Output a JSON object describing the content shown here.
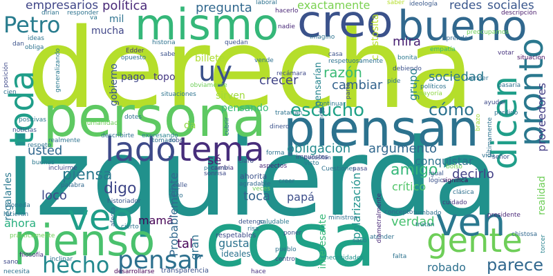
{
  "words": [
    {
      "text": "derecha",
      "color": "#b5de2b"
    },
    {
      "text": "izquierda",
      "color": "#21918c"
    },
    {
      "text": "cosa",
      "color": "#1fa187"
    },
    {
      "text": "persona",
      "color": "#5ec962"
    },
    {
      "text": "piensan",
      "color": "#2c728e"
    },
    {
      "text": "mismo",
      "color": "#35b779"
    },
    {
      "text": "creo",
      "color": "#3b528b"
    },
    {
      "text": "bueno",
      "color": "#31688e"
    },
    {
      "text": "pienso",
      "color": "#4ac16d"
    },
    {
      "text": "gente",
      "color": "#6ece58"
    },
    {
      "text": "ven",
      "color": "#2a788e"
    },
    {
      "text": "veo",
      "color": "#1f9e89"
    },
    {
      "text": "lado",
      "color": "#3e4a89"
    },
    {
      "text": "tema",
      "color": "#472d7b"
    },
    {
      "text": "uy",
      "color": "#3b528b"
    },
    {
      "text": "hecho",
      "color": "#23898e"
    },
    {
      "text": "dicen",
      "color": "#1f9e89"
    },
    {
      "text": "pronto",
      "color": "#2a788e"
    },
    {
      "text": "toda",
      "color": "#1f9e89"
    },
    {
      "text": "Petro",
      "color": "#287c8e"
    },
    {
      "text": "pensar",
      "color": "#2d708e"
    },
    {
      "text": "escucho",
      "color": "#1fa187"
    },
    {
      "text": "cómo",
      "color": "#2c728e"
    },
    {
      "text": "parece",
      "color": "#31688e"
    },
    {
      "text": "política",
      "color": "#482878"
    },
    {
      "text": "empresarios",
      "color": "#404688"
    },
    {
      "text": "pregunta",
      "color": "#31688e"
    },
    {
      "text": "exactamente",
      "color": "#7ad151"
    },
    {
      "text": "redes",
      "color": "#39568c"
    },
    {
      "text": "sociales",
      "color": "#39568c"
    },
    {
      "text": "mira",
      "color": "#482173"
    },
    {
      "text": "razón",
      "color": "#3aba76"
    },
    {
      "text": "crecer",
      "color": "#414487"
    },
    {
      "text": "cambiar",
      "color": "#33638d"
    },
    {
      "text": "sociedad",
      "color": "#2a788e"
    },
    {
      "text": "grupo",
      "color": "#26828e"
    },
    {
      "text": "obligación",
      "color": "#23898e"
    },
    {
      "text": "argumento",
      "color": "#31688e"
    },
    {
      "text": "usted",
      "color": "#31688e"
    },
    {
      "text": "piensa",
      "color": "#2a788e"
    },
    {
      "text": "amigo",
      "color": "#35b779"
    },
    {
      "text": "decirlo",
      "color": "#424086"
    },
    {
      "text": "digo",
      "color": "#3f4788"
    },
    {
      "text": "loco",
      "color": "#3e4989"
    },
    {
      "text": "sé",
      "color": "#481f70"
    },
    {
      "text": "toca",
      "color": "#33638d"
    },
    {
      "text": "papá",
      "color": "#3d4e8a"
    },
    {
      "text": "crítico",
      "color": "#52c569"
    },
    {
      "text": "verdad",
      "color": "#46c06f"
    },
    {
      "text": "robado",
      "color": "#2d708e"
    },
    {
      "text": "mamá",
      "color": "#440154"
    },
    {
      "text": "ahora",
      "color": "#29af7f"
    },
    {
      "text": "gusta",
      "color": "#2c728e"
    },
    {
      "text": "tal",
      "color": "#440154"
    },
    {
      "text": "gran",
      "color": "#2d708e"
    },
    {
      "text": "Probablemente",
      "color": "#31688e"
    },
    {
      "text": "polarización",
      "color": "#20928c"
    },
    {
      "text": "interesante",
      "color": "#37b878"
    },
    {
      "text": "conquistar",
      "color": "#2c728e"
    },
    {
      "text": "proveedores",
      "color": "#433e85"
    },
    {
      "text": "realidad",
      "color": "#6ece58"
    },
    {
      "text": "pensando",
      "color": "#3aba76"
    },
    {
      "text": "billete",
      "color": "#addc30"
    },
    {
      "text": "pago",
      "color": "#3f4788"
    },
    {
      "text": "topo",
      "color": "#453882"
    },
    {
      "text": "sirven",
      "color": "#9fda3a"
    },
    {
      "text": "gobierno",
      "color": "#39568c"
    },
    {
      "text": "mil",
      "color": "#2c728e"
    },
    {
      "text": "mucha",
      "color": "#404688"
    },
    {
      "text": "da",
      "color": "#8fd744"
    },
    {
      "text": "pensarían",
      "color": "#25848e"
    },
    {
      "text": "chistosita",
      "color": "#b8de29"
    },
    {
      "text": "regalarles",
      "color": "#2a788e"
    },
    {
      "text": "ideología",
      "color": "#38588c"
    },
    {
      "text": "saber",
      "color": "#b5de2b"
    },
    {
      "text": "laboral",
      "color": "#2c728e"
    },
    {
      "text": "hacerlo",
      "color": "#482475"
    },
    {
      "text": "nadie",
      "color": "#482878"
    },
    {
      "text": "descripción",
      "color": "#481a6c"
    },
    {
      "text": "preocupamos",
      "color": "#6ece58"
    },
    {
      "text": "aprender",
      "color": "#31688e"
    },
    {
      "text": "bonita",
      "color": "#2a788e"
    },
    {
      "text": "votar",
      "color": "#46337e"
    },
    {
      "text": "situación",
      "color": "#471063"
    },
    {
      "text": "empatía",
      "color": "#35b779"
    },
    {
      "text": "debiendo",
      "color": "#3b528b"
    },
    {
      "text": "políticos",
      "color": "#2c728e"
    },
    {
      "text": "mayoría",
      "color": "#8fd744"
    },
    {
      "text": "ayudar",
      "color": "#3e4a89"
    },
    {
      "text": "pasaría",
      "color": "#2d708e"
    },
    {
      "text": "vender",
      "color": "#2d708e"
    },
    {
      "text": "últimamente",
      "color": "#2c728e"
    },
    {
      "text": "brazo",
      "color": "#9fda3a"
    },
    {
      "text": "perdido",
      "color": "#2c728e"
    },
    {
      "text": "señor",
      "color": "#3b528b"
    },
    {
      "text": "vida",
      "color": "#2d708e"
    },
    {
      "text": "bolso",
      "color": "#6ece58"
    },
    {
      "text": "igual",
      "color": "#39568c"
    },
    {
      "text": "significa",
      "color": "#440154"
    },
    {
      "text": "lógica",
      "color": "#3b528b"
    },
    {
      "text": "clásica",
      "color": "#2d708e"
    },
    {
      "text": "cuidado",
      "color": "#46337e"
    },
    {
      "text": "presidente",
      "color": "#482878"
    },
    {
      "text": "chistosa",
      "color": "#31688e"
    },
    {
      "text": "torcer",
      "color": "#26828e"
    },
    {
      "text": "atender",
      "color": "#2d708e"
    },
    {
      "text": "falta",
      "color": "#2c728e"
    },
    {
      "text": "tratan",
      "color": "#2a788e"
    },
    {
      "text": "necesidades",
      "color": "#21918c"
    },
    {
      "text": "tumbado",
      "color": "#2d708e"
    },
    {
      "text": "concepto",
      "color": "#31688e"
    },
    {
      "text": "diametralmente",
      "color": "#482878"
    },
    {
      "text": "Cuestiones",
      "color": "#2d708e"
    },
    {
      "text": "pasa",
      "color": "#3e4a89"
    },
    {
      "text": "ministros",
      "color": "#2d708e"
    },
    {
      "text": "centro",
      "color": "#3e4989"
    },
    {
      "text": "pueblo",
      "color": "#2c728e"
    },
    {
      "text": "poner",
      "color": "#3b528b"
    },
    {
      "text": "sacó",
      "color": "#2a788e"
    },
    {
      "text": "hace",
      "color": "#46307e"
    },
    {
      "text": "ideales",
      "color": "#2c728e"
    },
    {
      "text": "respetables",
      "color": "#3e4a89"
    },
    {
      "text": "transparencia",
      "color": "#3b528b"
    },
    {
      "text": "desarrollarse",
      "color": "#440154"
    },
    {
      "text": "necesita",
      "color": "#2c728e"
    },
    {
      "text": "sano",
      "color": "#3e4989"
    },
    {
      "text": "filosofía",
      "color": "#46337e"
    },
    {
      "text": "prácticamente",
      "color": "#6ece58"
    },
    {
      "text": "moneda",
      "color": "#2c728e"
    },
    {
      "text": "hicieran",
      "color": "#2c728e"
    },
    {
      "text": "buenas",
      "color": "#2a788e"
    },
    {
      "text": "incluirme",
      "color": "#3e4989"
    },
    {
      "text": "palabra",
      "color": "#31688e"
    },
    {
      "text": "historiador",
      "color": "#39568c"
    },
    {
      "text": "afecta",
      "color": "#33638d"
    },
    {
      "text": "cierto",
      "color": "#2c728e"
    },
    {
      "text": "inclinar",
      "color": "#2c728e"
    },
    {
      "text": "detengo",
      "color": "#3b528b"
    },
    {
      "text": "saludable",
      "color": "#2a788e"
    },
    {
      "text": "risa",
      "color": "#2d708e"
    },
    {
      "text": "ahorita",
      "color": "#3b528b"
    },
    {
      "text": "agradable",
      "color": "#31688e"
    },
    {
      "text": "veces",
      "color": "#6ece58"
    },
    {
      "text": "creer",
      "color": "#2d708e"
    },
    {
      "text": "pensarán",
      "color": "#2c728e"
    },
    {
      "text": "sonrisa",
      "color": "#3e4a89"
    },
    {
      "text": "claro",
      "color": "#3b528b"
    },
    {
      "text": "aspectos",
      "color": "#482878"
    },
    {
      "text": "cambia",
      "color": "#46337e"
    },
    {
      "text": "calle",
      "color": "#3b528b"
    },
    {
      "text": "dar",
      "color": "#2c728e"
    },
    {
      "text": "saco",
      "color": "#2d708e"
    },
    {
      "text": "robo",
      "color": "#3b528b"
    },
    {
      "text": "describirte",
      "color": "#2d708e"
    },
    {
      "text": "expresando",
      "color": "#26828e"
    },
    {
      "text": "tomado",
      "color": "#2c728e"
    },
    {
      "text": "forma",
      "color": "#2c728e"
    },
    {
      "text": "impuestos",
      "color": "#3e4989"
    },
    {
      "text": "visto",
      "color": "#2a788e"
    },
    {
      "text": "necesitan",
      "color": "#3b528b"
    },
    {
      "text": "respeto",
      "color": "#2c728e"
    },
    {
      "text": "realmente",
      "color": "#2c728e"
    },
    {
      "text": "noticias",
      "color": "#3b528b"
    },
    {
      "text": "positivas",
      "color": "#2a788e"
    },
    {
      "text": "humanidad",
      "color": "#6ece58"
    },
    {
      "text": "dotes",
      "color": "#2d708e"
    },
    {
      "text": "dinero",
      "color": "#3b528b"
    },
    {
      "text": "cubrir",
      "color": "#2c728e"
    },
    {
      "text": "tratarían",
      "color": "#2c728e"
    },
    {
      "text": "manejo",
      "color": "#2d708e"
    },
    {
      "text": "parte",
      "color": "#3e4989"
    },
    {
      "text": "continuar",
      "color": "#2a788e"
    },
    {
      "text": "situaciones",
      "color": "#2c728e"
    },
    {
      "text": "obviamente",
      "color": "#6ece58"
    },
    {
      "text": "sabe",
      "color": "#3b528b"
    },
    {
      "text": "opuesto",
      "color": "#2d708e"
    },
    {
      "text": "Edder",
      "color": "#46337e"
    },
    {
      "text": "historia",
      "color": "#2c728e"
    },
    {
      "text": "generalizando",
      "color": "#2a788e"
    },
    {
      "text": "dan",
      "color": "#3b528b"
    },
    {
      "text": "obliga",
      "color": "#2c728e"
    },
    {
      "text": "ideas",
      "color": "#2c728e"
    },
    {
      "text": "posición",
      "color": "#3e4989"
    },
    {
      "text": "cien",
      "color": "#2d708e"
    },
    {
      "text": "dirían",
      "color": "#2c728e"
    },
    {
      "text": "responder",
      "color": "#2c728e"
    },
    {
      "text": "va",
      "color": "#2a788e"
    },
    {
      "text": "quedan",
      "color": "#3b528b"
    },
    {
      "text": "imagino",
      "color": "#2c728e"
    },
    {
      "text": "casa",
      "color": "#3b528b"
    },
    {
      "text": "respetuosamente",
      "color": "#2c728e"
    },
    {
      "text": "pide",
      "color": "#2c728e"
    },
    {
      "text": "recámara",
      "color": "#3e4989"
    },
    {
      "text": "vende",
      "color": "#2d708e"
    }
  ]
}
